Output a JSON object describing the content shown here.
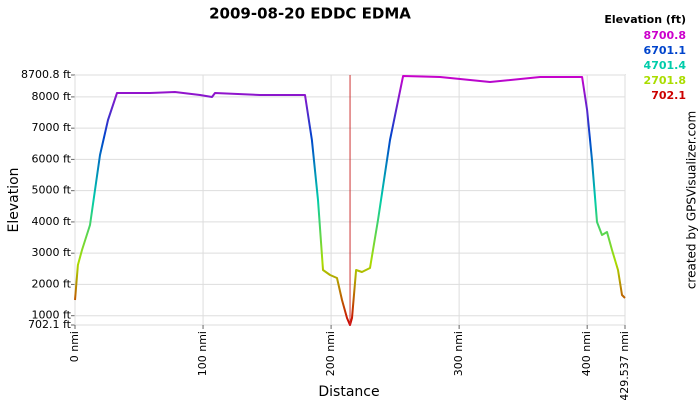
{
  "chart_data": {
    "type": "line",
    "title": "2009-08-20 EDDC EDMA",
    "x_label": "Distance",
    "y_label": "Elevation",
    "credit": "created by GPSVisualizer.com",
    "legend": {
      "title": "Elevation (ft)",
      "position": "top-right",
      "items": [
        {
          "value": 8700.8,
          "label": "8700.8",
          "color": "#cc00cc"
        },
        {
          "value": 6701.1,
          "label": "6701.1",
          "color": "#0044cc"
        },
        {
          "value": 4701.4,
          "label": "4701.4",
          "color": "#00ccaa"
        },
        {
          "value": 2701.8,
          "label": "2701.8",
          "color": "#aadd00"
        },
        {
          "value": 702.1,
          "label": "702.1",
          "color": "#cc0000"
        }
      ]
    },
    "xlim": [
      0,
      429.537
    ],
    "ylim": [
      702.1,
      8700.8
    ],
    "xticks": [
      {
        "value": 0,
        "label": "0 nmi"
      },
      {
        "value": 100,
        "label": "100 nmi"
      },
      {
        "value": 200,
        "label": "200 nmi"
      },
      {
        "value": 300,
        "label": "300 nmi"
      },
      {
        "value": 400,
        "label": "400 nmi"
      },
      {
        "value": 429.537,
        "label": "429.537 nmi"
      }
    ],
    "yticks": [
      {
        "value": 702.1,
        "label": "702.1 ft"
      },
      {
        "value": 1000,
        "label": "1000 ft"
      },
      {
        "value": 2000,
        "label": "2000 ft"
      },
      {
        "value": 3000,
        "label": "3000 ft"
      },
      {
        "value": 4000,
        "label": "4000 ft"
      },
      {
        "value": 5000,
        "label": "5000 ft"
      },
      {
        "value": 6000,
        "label": "6000 ft"
      },
      {
        "value": 7000,
        "label": "7000 ft"
      },
      {
        "value": 8000,
        "label": "8000 ft"
      },
      {
        "value": 8700.8,
        "label": "8700.8 ft"
      }
    ],
    "grid": true,
    "marker_line": {
      "x": 214.8,
      "color": "#cc3333"
    },
    "x": [
      0,
      2.3,
      5.5,
      11.7,
      19.5,
      25.8,
      32.8,
      58.6,
      78,
      97.6,
      107,
      109.3,
      144.5,
      179.6,
      185,
      189.8,
      193.7,
      199.2,
      204.6,
      208.5,
      212.4,
      214.8,
      216.3,
      219.5,
      224.1,
      230.4,
      236.6,
      246,
      256.2,
      285.1,
      324.1,
      363.2,
      396,
      399.9,
      403.8,
      407.7,
      411.6,
      415.5,
      419.4,
      424.1,
      427.2,
      429.5
    ],
    "values": [
      1502,
      2622,
      3102,
      3902,
      6141,
      7261,
      8125,
      8125,
      8157,
      8061,
      7997,
      8125,
      8061,
      8061,
      6621,
      4702,
      2462,
      2302,
      2206,
      1502,
      926,
      702.1,
      926,
      2462,
      2398,
      2526,
      4062,
      6621,
      8669,
      8637,
      8477,
      8637,
      8637,
      7581,
      5981,
      3998,
      3582,
      3678,
      3102,
      2462,
      1662,
      1566
    ]
  }
}
